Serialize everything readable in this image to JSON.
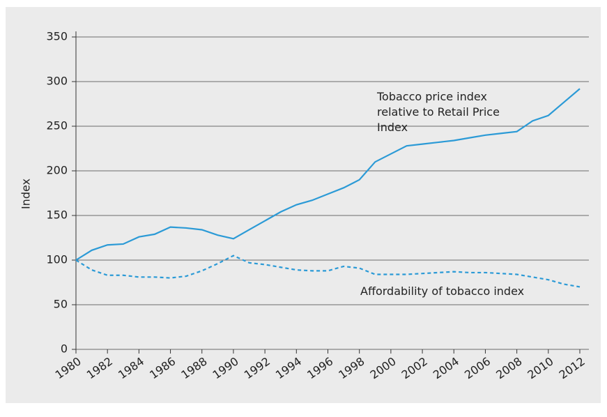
{
  "chart_data": {
    "type": "line",
    "y_label": "Index",
    "x": [
      1980,
      1981,
      1982,
      1983,
      1984,
      1985,
      1986,
      1987,
      1988,
      1989,
      1990,
      1991,
      1992,
      1993,
      1994,
      1995,
      1996,
      1997,
      1998,
      1999,
      2000,
      2001,
      2002,
      2003,
      2004,
      2005,
      2006,
      2007,
      2008,
      2009,
      2010,
      2011,
      2012
    ],
    "series": [
      {
        "name": "Tobacco price index relative to Retail Price Index",
        "color": "#2b9ad6",
        "dash": false,
        "values": [
          100,
          111,
          117,
          118,
          126,
          129,
          137,
          136,
          134,
          128,
          124,
          134,
          144,
          154,
          162,
          167,
          174,
          181,
          190,
          210,
          219,
          228,
          230,
          232,
          234,
          237,
          240,
          242,
          244,
          256,
          262,
          277,
          292
        ]
      },
      {
        "name": "Affordability of tobacco index",
        "color": "#2b9ad6",
        "dash": true,
        "values": [
          100,
          89,
          83,
          83,
          81,
          81,
          80,
          82,
          88,
          96,
          105,
          97,
          95,
          92,
          89,
          88,
          88,
          93,
          91,
          84,
          84,
          84,
          85,
          86,
          87,
          86,
          86,
          85,
          84,
          81,
          78,
          73,
          70
        ]
      }
    ],
    "xlim": [
      1980,
      2012
    ],
    "xticks": [
      1980,
      1982,
      1984,
      1986,
      1988,
      1990,
      1992,
      1994,
      1996,
      1998,
      2000,
      2002,
      2004,
      2006,
      2008,
      2010,
      2012
    ],
    "ylim": [
      0,
      350
    ],
    "yticks": [
      0,
      50,
      100,
      150,
      200,
      250,
      300,
      350
    ],
    "grid": true
  }
}
